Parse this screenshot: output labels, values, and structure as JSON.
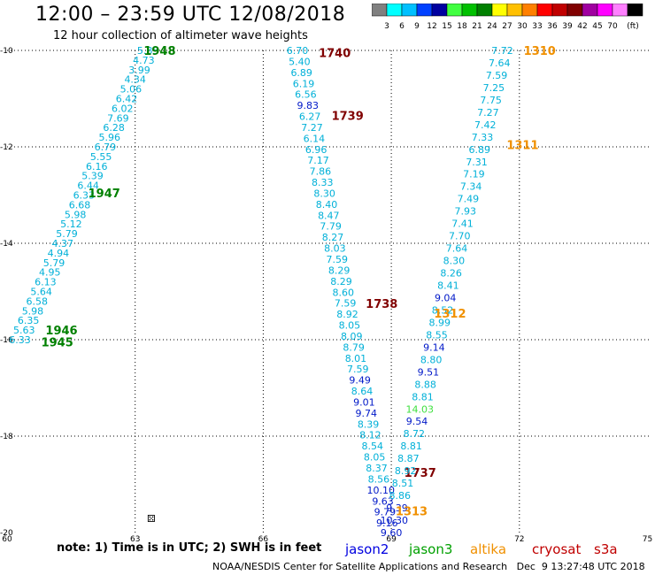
{
  "header": {
    "title": "12:00 – 23:59 UTC 12/08/2018",
    "subtitle": "12 hour collection of altimeter wave heights"
  },
  "colorbar": {
    "colors": [
      "#808080",
      "#00ffff",
      "#00c0ff",
      "#0040ff",
      "#0000a0",
      "#40ff40",
      "#00c000",
      "#008000",
      "#ffff00",
      "#ffc000",
      "#ff8000",
      "#ff0000",
      "#c00000",
      "#800000",
      "#a000a0",
      "#ff00ff",
      "#ff80ff",
      "#000000"
    ],
    "labels": [
      "3",
      "6",
      "9",
      "12",
      "15",
      "18",
      "21",
      "24",
      "27",
      "30",
      "33",
      "36",
      "39",
      "42",
      "45",
      "70",
      "(ft)"
    ]
  },
  "axes": {
    "lon_ticks": [
      "60",
      "63",
      "66",
      "69",
      "72",
      "75"
    ],
    "lat_ticks": [
      "-10",
      "-12",
      "-14",
      "-16",
      "-18",
      "-20"
    ]
  },
  "tracks": [
    {
      "satellite": "jason3",
      "color": "#00b0d8",
      "start": [
        63.3,
        -10.0
      ],
      "end": [
        60.3,
        -16.0
      ],
      "values": [
        "5.83",
        "4.73",
        "3.99",
        "4.34",
        "5.06",
        "6.42",
        "6.02",
        "7.69",
        "6.28",
        "5.96",
        "6.79",
        "5.55",
        "6.16",
        "5.39",
        "6.44",
        "6.33",
        "6.68",
        "5.98",
        "5.12",
        "5.79",
        "4.37",
        "4.94",
        "5.79",
        "4.95",
        "6.13",
        "5.64",
        "6.58",
        "5.98",
        "6.35",
        "5.63",
        "6.33"
      ],
      "time_labels": [
        {
          "text": "1948",
          "lon": 63.2,
          "lat": -10.0
        },
        {
          "text": "1947",
          "lon": 61.9,
          "lat": -12.95
        },
        {
          "text": "1946",
          "lon": 60.9,
          "lat": -15.8
        },
        {
          "text": "1945",
          "lon": 60.8,
          "lat": -16.05
        }
      ],
      "label_color": "#008000"
    },
    {
      "satellite": "cryosat",
      "color": "#00b0d8",
      "start": [
        66.8,
        -10.0
      ],
      "end": [
        68.9,
        -19.8
      ],
      "values": [
        "6.70",
        "5.40",
        "6.89",
        "6.19",
        "6.56",
        "9.83",
        "6.27",
        "7.27",
        "6.14",
        "6.96",
        "7.17",
        "7.86",
        "8.33",
        "8.30",
        "8.40",
        "8.47",
        "7.79",
        "8.27",
        "8.03",
        "7.59",
        "8.29",
        "8.29",
        "8.60",
        "7.59",
        "8.92",
        "8.05",
        "8.09",
        "8.79",
        "8.01",
        "7.59",
        "9.49",
        "8.64",
        "9.01",
        "9.74",
        "8.39",
        "8.12",
        "8.54",
        "8.05",
        "8.37",
        "8.56",
        "10.10",
        "9.63",
        "9.79",
        "9.16"
      ],
      "time_labels": [
        {
          "text": "1740",
          "lon": 67.3,
          "lat": -10.05
        },
        {
          "text": "1739",
          "lon": 67.6,
          "lat": -11.35
        },
        {
          "text": "1738",
          "lon": 68.4,
          "lat": -15.25
        },
        {
          "text": "1737",
          "lon": 69.3,
          "lat": -18.75
        }
      ],
      "label_color": "#800000"
    },
    {
      "satellite": "altika",
      "color": "#00b0d8",
      "start": [
        71.6,
        -10.0
      ],
      "end": [
        69.0,
        -20.0
      ],
      "values": [
        "7.72",
        "7.64",
        "7.59",
        "7.25",
        "7.75",
        "7.27",
        "7.42",
        "7.33",
        "6.89",
        "7.31",
        "7.19",
        "7.34",
        "7.49",
        "7.93",
        "7.41",
        "7.70",
        "7.64",
        "8.30",
        "8.26",
        "8.41",
        "9.04",
        "8.52",
        "8.99",
        "8.55",
        "9.14",
        "8.80",
        "9.51",
        "8.88",
        "8.81",
        "14.03",
        "9.54",
        "8.72",
        "8.81",
        "8.87",
        "8.92",
        "8.51",
        "8.86",
        "9.39",
        "10.30",
        "9.60"
      ],
      "time_labels": [
        {
          "text": "1310",
          "lon": 72.1,
          "lat": -10.0
        },
        {
          "text": "1311",
          "lon": 71.7,
          "lat": -11.95
        },
        {
          "text": "1312",
          "lon": 70.0,
          "lat": -15.45
        },
        {
          "text": "1313",
          "lon": 69.1,
          "lat": -19.55
        }
      ],
      "label_color": "#f09000"
    }
  ],
  "footer": {
    "note": "note: 1) Time is in UTC; 2) SWH is in feet",
    "legend": [
      {
        "name": "jason2",
        "color": "#0000e0"
      },
      {
        "name": "jason3",
        "color": "#00a000"
      },
      {
        "name": "altika",
        "color": "#f09000"
      },
      {
        "name": "cryosat",
        "color": "#c00000"
      },
      {
        "name": "s3a",
        "color": "#c00000"
      }
    ],
    "credit": "NOAA/NESDIS Center for Satellite Applications and Research   Dec  9 13:27:48 UTC 2018"
  }
}
